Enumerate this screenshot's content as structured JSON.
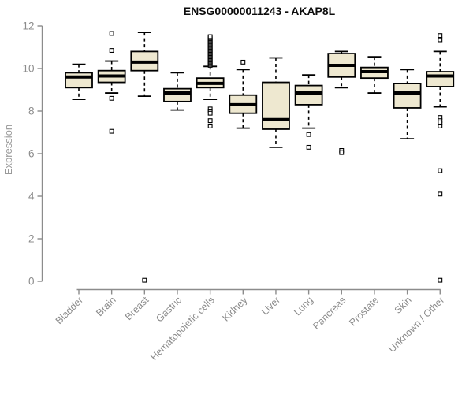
{
  "chart_data": {
    "type": "boxplot",
    "title": "ENSG00000011243 - AKAP8L",
    "ylabel": "Expression",
    "xlabel": "",
    "ylim": [
      0,
      12
    ],
    "y_ticks": [
      0,
      2,
      4,
      6,
      8,
      10,
      12
    ],
    "grid": false,
    "legend": "none",
    "categories": [
      "Bladder",
      "Brain",
      "Breast",
      "Gastric",
      "Hematopoietic cells",
      "Kidney",
      "Liver",
      "Lung",
      "Pancreas",
      "Prostate",
      "Skin",
      "Unknown / Other"
    ],
    "groups": [
      {
        "category": "Bladder",
        "whisker_low": 8.55,
        "q1": 9.1,
        "median": 9.6,
        "q3": 9.8,
        "whisker_high": 10.2,
        "outliers": []
      },
      {
        "category": "Brain",
        "whisker_low": 8.85,
        "q1": 9.35,
        "median": 9.65,
        "q3": 9.9,
        "whisker_high": 10.35,
        "outliers": [
          11.65,
          10.85,
          8.6,
          7.05
        ]
      },
      {
        "category": "Breast",
        "whisker_low": 8.7,
        "q1": 9.9,
        "median": 10.3,
        "q3": 10.8,
        "whisker_high": 11.7,
        "outliers": [
          0.05
        ]
      },
      {
        "category": "Gastric",
        "whisker_low": 8.05,
        "q1": 8.45,
        "median": 8.85,
        "q3": 9.05,
        "whisker_high": 9.8,
        "outliers": []
      },
      {
        "category": "Hematopoietic cells",
        "whisker_low": 8.55,
        "q1": 9.1,
        "median": 9.3,
        "q3": 9.55,
        "whisker_high": 10.1,
        "outliers": [
          10.15,
          10.2,
          10.25,
          10.3,
          10.35,
          10.4,
          10.45,
          10.5,
          10.55,
          10.6,
          10.65,
          10.7,
          10.75,
          10.8,
          10.85,
          10.9,
          10.95,
          11.0,
          11.05,
          11.1,
          11.15,
          11.2,
          11.25,
          11.3,
          11.35,
          11.4,
          11.45,
          11.5,
          8.1,
          8.0,
          7.9,
          7.55,
          7.3
        ]
      },
      {
        "category": "Kidney",
        "whisker_low": 7.2,
        "q1": 7.9,
        "median": 8.3,
        "q3": 8.75,
        "whisker_high": 9.95,
        "outliers": [
          10.3
        ]
      },
      {
        "category": "Liver",
        "whisker_low": 6.3,
        "q1": 7.15,
        "median": 7.6,
        "q3": 9.35,
        "whisker_high": 10.5,
        "outliers": []
      },
      {
        "category": "Lung",
        "whisker_low": 7.2,
        "q1": 8.3,
        "median": 8.85,
        "q3": 9.2,
        "whisker_high": 9.7,
        "outliers": [
          6.9,
          6.3
        ]
      },
      {
        "category": "Pancreas",
        "whisker_low": 9.1,
        "q1": 9.6,
        "median": 10.15,
        "q3": 10.7,
        "whisker_high": 10.8,
        "outliers": [
          6.15,
          6.05
        ]
      },
      {
        "category": "Prostate",
        "whisker_low": 8.85,
        "q1": 9.55,
        "median": 9.85,
        "q3": 10.05,
        "whisker_high": 10.55,
        "outliers": []
      },
      {
        "category": "Skin",
        "whisker_low": 6.7,
        "q1": 8.15,
        "median": 8.85,
        "q3": 9.3,
        "whisker_high": 9.95,
        "outliers": []
      },
      {
        "category": "Unknown / Other",
        "whisker_low": 8.2,
        "q1": 9.15,
        "median": 9.65,
        "q3": 9.85,
        "whisker_high": 10.8,
        "outliers": [
          11.55,
          11.35,
          7.7,
          7.55,
          7.45,
          7.3,
          5.2,
          4.1,
          0.05
        ]
      }
    ],
    "colors": {
      "box_fill": "#EEE8D0",
      "box_stroke": "#000000",
      "median": "#000000",
      "axis": "#8C8C8C",
      "tick_label": "#8C8C8C",
      "title": "#0D0D0D",
      "background": "#FFFFFF"
    }
  }
}
